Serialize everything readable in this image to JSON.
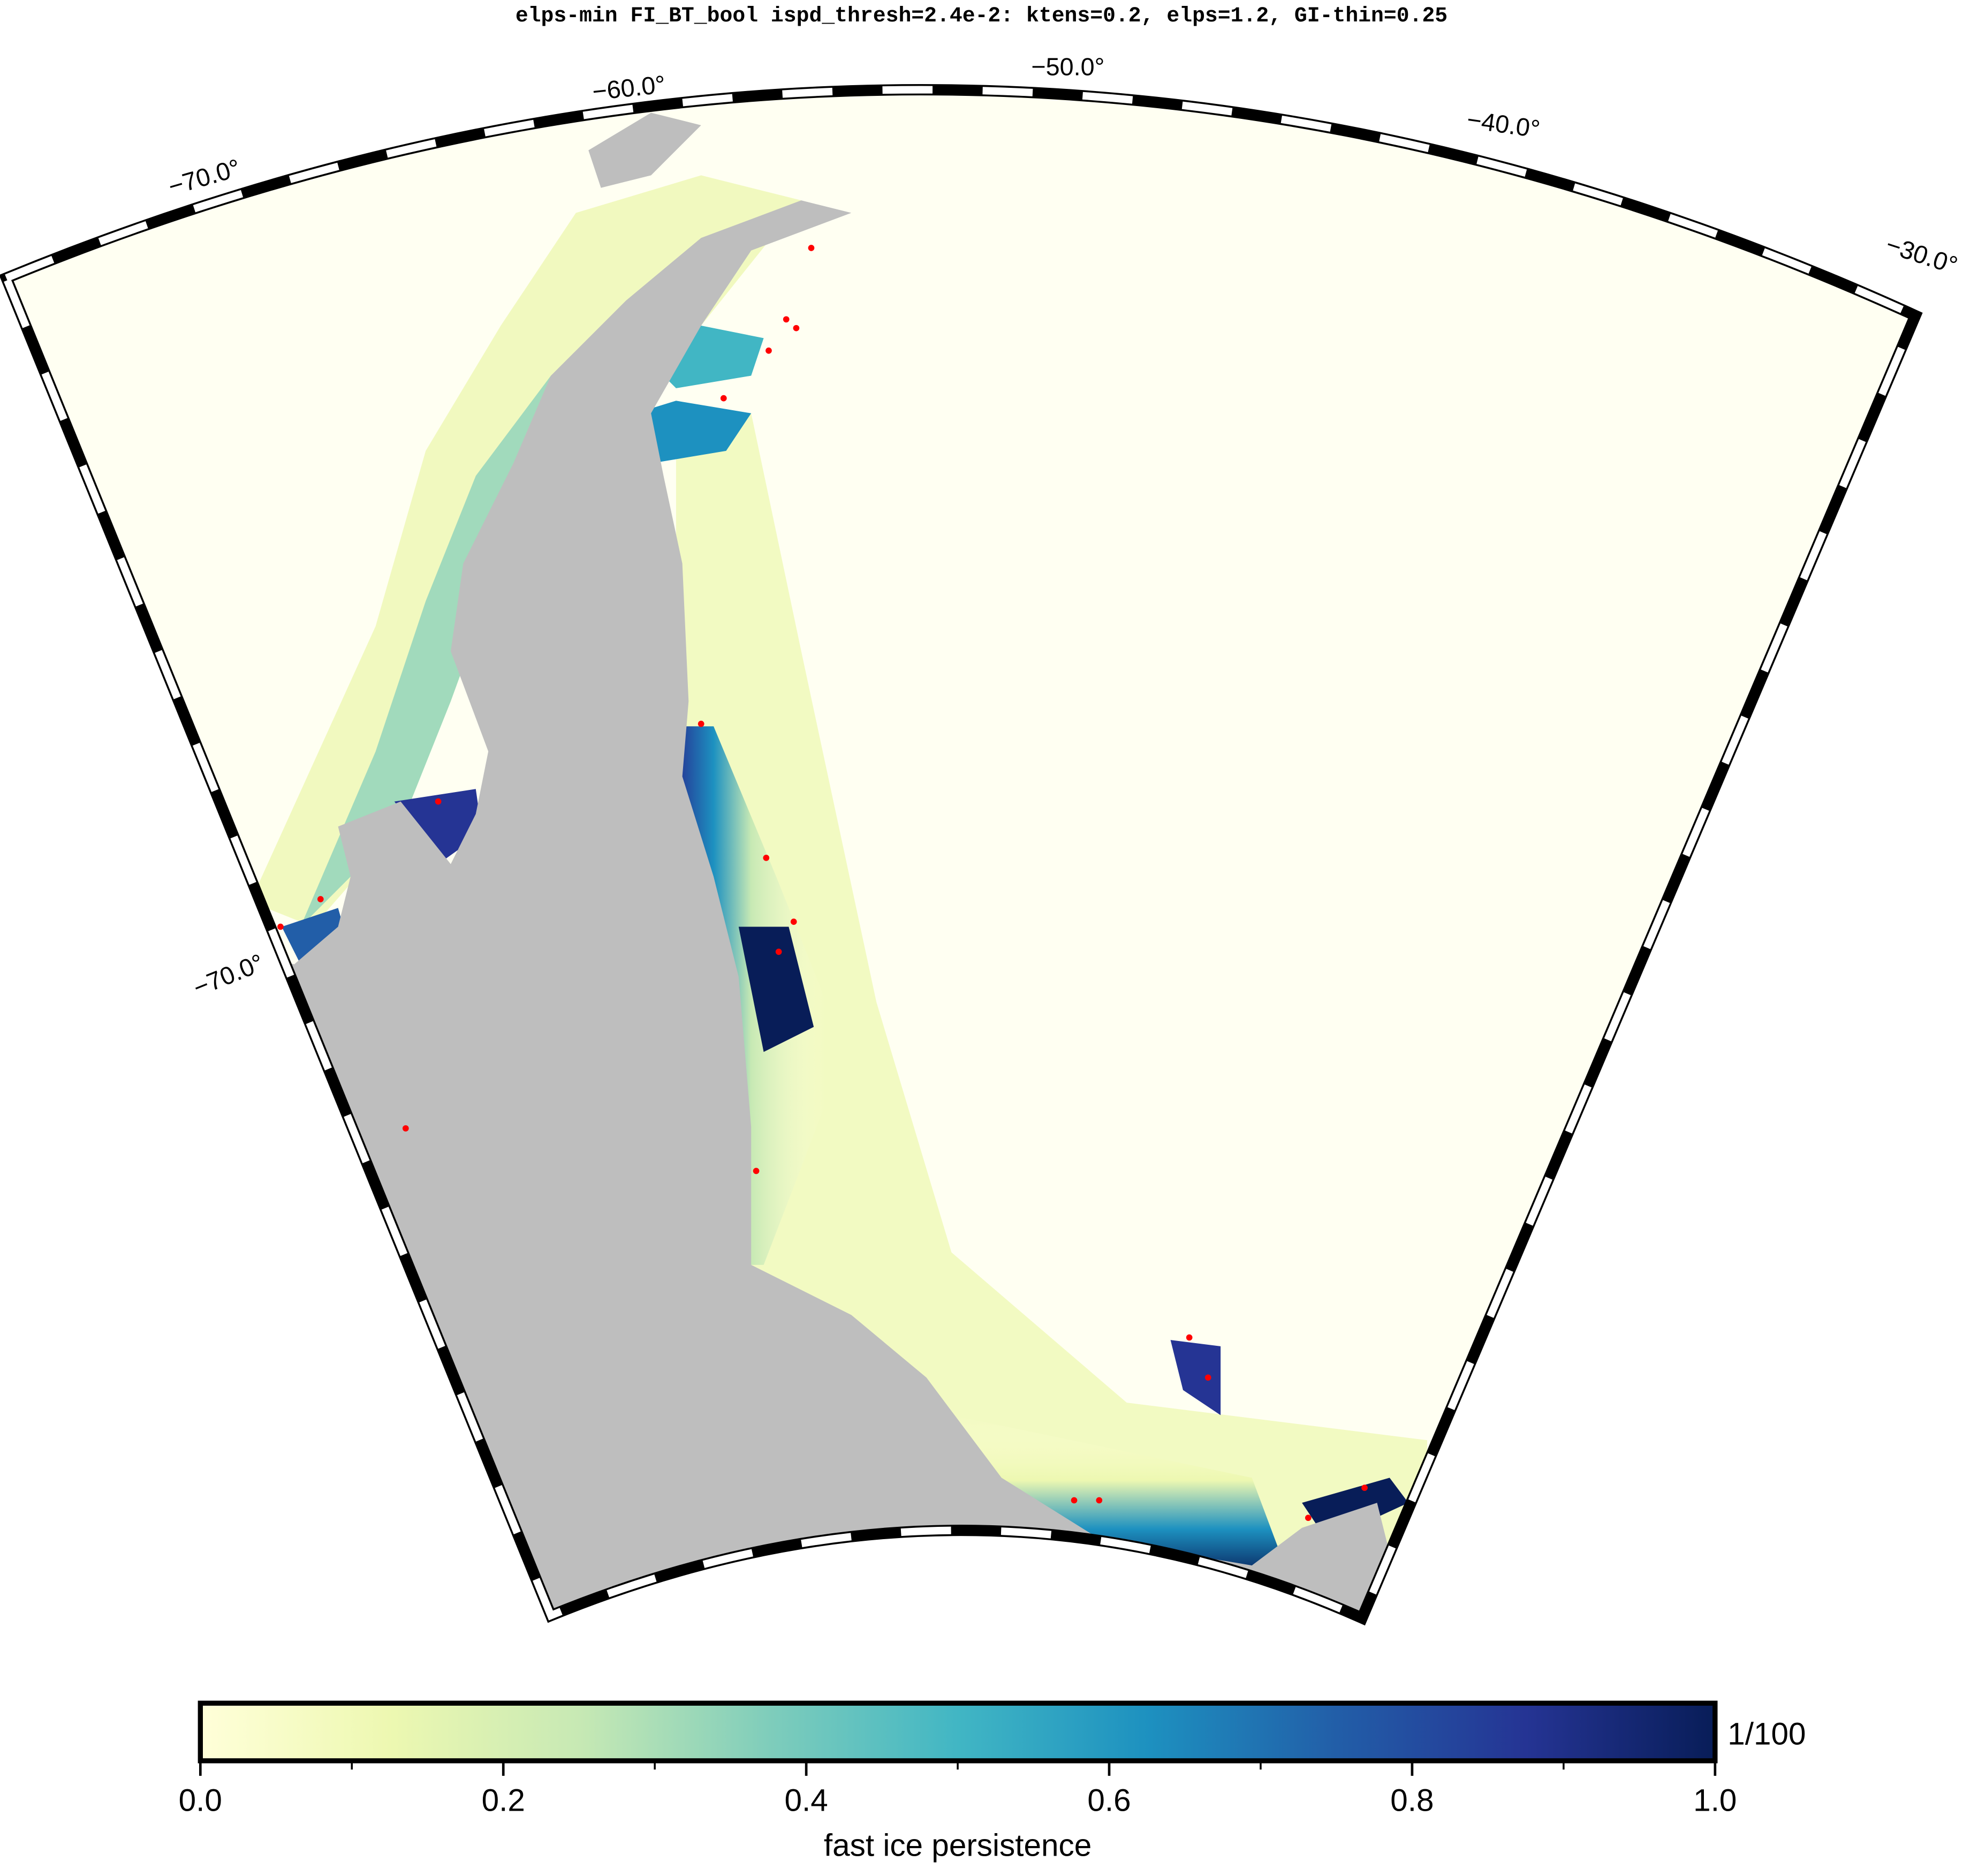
{
  "title": "elps-min FI_BT_bool ispd_thresh=2.4e-2: ktens=0.2, elps=1.2, GI-thin=0.25",
  "graticule": {
    "longitude_labels": [
      "−70.0°",
      "−60.0°",
      "−50.0°",
      "−40.0°",
      "−30.0°"
    ],
    "latitude_labels": [
      "−70.0°"
    ]
  },
  "colorbar": {
    "label": "fast ice persistence",
    "unit": "1/100",
    "lim": [
      0,
      1
    ],
    "colors": [
      "#ffffd9",
      "#edf8b1",
      "#c7e9b4",
      "#7fcdbb",
      "#41b6c4",
      "#1d91c0",
      "#225ea8",
      "#253494",
      "#081d58"
    ],
    "ticks": [
      {
        "value": 0,
        "label": "0.0"
      },
      {
        "value": 0.2,
        "label": "0.2"
      },
      {
        "value": 0.4,
        "label": "0.4"
      },
      {
        "value": 0.6,
        "label": "0.6"
      },
      {
        "value": 0.8,
        "label": "0.8"
      },
      {
        "value": 1,
        "label": "1.0"
      }
    ],
    "minor_ticks": [
      0.1,
      0.3,
      0.5,
      0.7,
      0.9
    ]
  }
}
